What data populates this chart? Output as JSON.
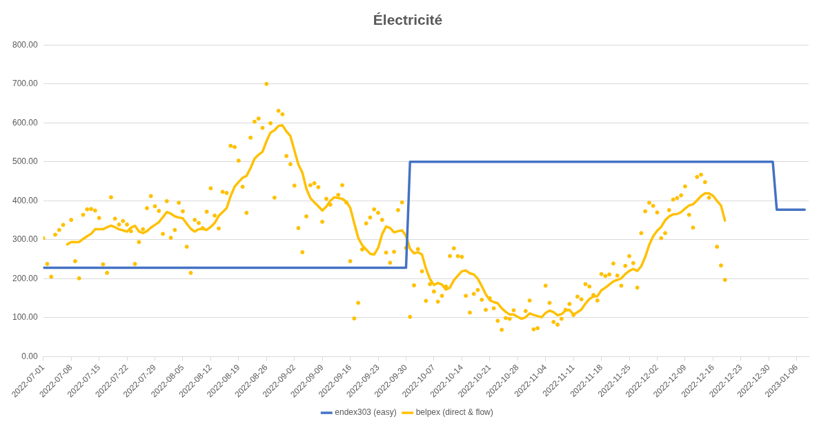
{
  "chart_data": {
    "type": "line",
    "title": "Électricité",
    "legend": "bottom",
    "grid": "y",
    "x": [
      "2022-07-01",
      "2022-07-02",
      "2022-07-03",
      "2022-07-04",
      "2022-07-05",
      "2022-07-06",
      "2022-07-07",
      "2022-07-08",
      "2022-07-09",
      "2022-07-10",
      "2022-07-11",
      "2022-07-12",
      "2022-07-13",
      "2022-07-14",
      "2022-07-15",
      "2022-07-16",
      "2022-07-17",
      "2022-07-18",
      "2022-07-19",
      "2022-07-20",
      "2022-07-21",
      "2022-07-22",
      "2022-07-23",
      "2022-07-24",
      "2022-07-25",
      "2022-07-26",
      "2022-07-27",
      "2022-07-28",
      "2022-07-29",
      "2022-07-30",
      "2022-07-31",
      "2022-08-01",
      "2022-08-02",
      "2022-08-03",
      "2022-08-04",
      "2022-08-05",
      "2022-08-06",
      "2022-08-07",
      "2022-08-08",
      "2022-08-09",
      "2022-08-10",
      "2022-08-11",
      "2022-08-12",
      "2022-08-13",
      "2022-08-14",
      "2022-08-15",
      "2022-08-16",
      "2022-08-17",
      "2022-08-18",
      "2022-08-19",
      "2022-08-20",
      "2022-08-21",
      "2022-08-22",
      "2022-08-23",
      "2022-08-24",
      "2022-08-25",
      "2022-08-26",
      "2022-08-27",
      "2022-08-28",
      "2022-08-29",
      "2022-08-30",
      "2022-08-31",
      "2022-09-01",
      "2022-09-02",
      "2022-09-03",
      "2022-09-04",
      "2022-09-05",
      "2022-09-06",
      "2022-09-07",
      "2022-09-08",
      "2022-09-09",
      "2022-09-10",
      "2022-09-11",
      "2022-09-12",
      "2022-09-13",
      "2022-09-14",
      "2022-09-15",
      "2022-09-16",
      "2022-09-17",
      "2022-09-18",
      "2022-09-19",
      "2022-09-20",
      "2022-09-21",
      "2022-09-22",
      "2022-09-23",
      "2022-09-24",
      "2022-09-25",
      "2022-09-26",
      "2022-09-27",
      "2022-09-28",
      "2022-09-29",
      "2022-09-30",
      "2022-10-01",
      "2022-10-02",
      "2022-10-03",
      "2022-10-04",
      "2022-10-05",
      "2022-10-06",
      "2022-10-07",
      "2022-10-08",
      "2022-10-09",
      "2022-10-10",
      "2022-10-11",
      "2022-10-12",
      "2022-10-13",
      "2022-10-14",
      "2022-10-15",
      "2022-10-16",
      "2022-10-17",
      "2022-10-18",
      "2022-10-19",
      "2022-10-20",
      "2022-10-21",
      "2022-10-22",
      "2022-10-23",
      "2022-10-24",
      "2022-10-25",
      "2022-10-26",
      "2022-10-27",
      "2022-10-28",
      "2022-10-29",
      "2022-10-30",
      "2022-10-31",
      "2022-11-01",
      "2022-11-02",
      "2022-11-03",
      "2022-11-04",
      "2022-11-05",
      "2022-11-06",
      "2022-11-07",
      "2022-11-08",
      "2022-11-09",
      "2022-11-10",
      "2022-11-11",
      "2022-11-12",
      "2022-11-13",
      "2022-11-14",
      "2022-11-15",
      "2022-11-16",
      "2022-11-17",
      "2022-11-18",
      "2022-11-19",
      "2022-11-20",
      "2022-11-21",
      "2022-11-22",
      "2022-11-23",
      "2022-11-24",
      "2022-11-25",
      "2022-11-26",
      "2022-11-27",
      "2022-11-28",
      "2022-11-29",
      "2022-11-30",
      "2022-12-01",
      "2022-12-02",
      "2022-12-03",
      "2022-12-04",
      "2022-12-05",
      "2022-12-06",
      "2022-12-07",
      "2022-12-08",
      "2022-12-09",
      "2022-12-10",
      "2022-12-11",
      "2022-12-12",
      "2022-12-13",
      "2022-12-14",
      "2022-12-15",
      "2022-12-16",
      "2022-12-17",
      "2022-12-18",
      "2022-12-19"
    ],
    "xlim": [
      "2022-07-01",
      "2023-01-09"
    ],
    "xticks": [
      "2022-07-01",
      "2022-07-08",
      "2022-07-15",
      "2022-07-22",
      "2022-07-29",
      "2022-08-05",
      "2022-08-12",
      "2022-08-19",
      "2022-08-26",
      "2022-09-02",
      "2022-09-09",
      "2022-09-16",
      "2022-09-23",
      "2022-09-30",
      "2022-10-07",
      "2022-10-14",
      "2022-10-21",
      "2022-10-28",
      "2022-11-04",
      "2022-11-11",
      "2022-11-18",
      "2022-11-25",
      "2022-12-02",
      "2022-12-09",
      "2022-12-16",
      "2022-12-23",
      "2022-12-30",
      "2023-01-06"
    ],
    "ylim": [
      0,
      800
    ],
    "yticks": [
      {
        "value": 0,
        "label": "0.00"
      },
      {
        "value": 100,
        "label": "100.00"
      },
      {
        "value": 200,
        "label": "200.00"
      },
      {
        "value": 300,
        "label": "300.00"
      },
      {
        "value": 400,
        "label": "400.00"
      },
      {
        "value": 500,
        "label": "500.00"
      },
      {
        "value": 600,
        "label": "600.00"
      },
      {
        "value": 700,
        "label": "700.00"
      },
      {
        "value": 800,
        "label": "800.00"
      }
    ],
    "series": [
      {
        "type": "scatter",
        "marker": "circle",
        "color": "#ffc000",
        "values": [
          304,
          238,
          205,
          313,
          325,
          338,
          null,
          351,
          245,
          201,
          364,
          378,
          379,
          375,
          356,
          237,
          215,
          409,
          354,
          339,
          348,
          339,
          322,
          238,
          294,
          327,
          381,
          412,
          386,
          374,
          315,
          399,
          305,
          325,
          395,
          373,
          282,
          215,
          351,
          343,
          330,
          372,
          432,
          362,
          329,
          423,
          420,
          541,
          538,
          503,
          436,
          369,
          562,
          603,
          611,
          587,
          700,
          599,
          408,
          631,
          622,
          515,
          494,
          439,
          330,
          268,
          360,
          440,
          445,
          435,
          346,
          405,
          390,
          null,
          415,
          440,
          396,
          245,
          98,
          138,
          275,
          342,
          357,
          378,
          369,
          351,
          267,
          241,
          269,
          376,
          396,
          279,
          102,
          183,
          276,
          219,
          143,
          186,
          167,
          141,
          156,
          180,
          258,
          278,
          258,
          256,
          156,
          113,
          161,
          171,
          146,
          120,
          150,
          124,
          92,
          69,
          99,
          97,
          119,
          null,
          null,
          117,
          144,
          70,
          73,
          null,
          182,
          138,
          89,
          82,
          97,
          120,
          135,
          107,
          154,
          147,
          186,
          180,
          158,
          144,
          212,
          207,
          211,
          239,
          208,
          182,
          233,
          258,
          240,
          177,
          317,
          373,
          395,
          387,
          370,
          304,
          317,
          376,
          403,
          407,
          414,
          437,
          364,
          331,
          461,
          467,
          448,
          408,
          null,
          282,
          234,
          197
        ]
      },
      {
        "name": "endex303 (easy)",
        "color": "#4472c4",
        "x": [
          "2022-07-01",
          "2022-09-30",
          "2022-10-01",
          "2022-12-31",
          "2023-01-01",
          "2023-01-08"
        ],
        "values": [
          228,
          228,
          500,
          500,
          377,
          377
        ]
      },
      {
        "name": "belpex (direct & flow)",
        "color": "#ffc000",
        "values": [
          null,
          null,
          null,
          null,
          null,
          null,
          288,
          294,
          294,
          294,
          302,
          309,
          315,
          327,
          327,
          327,
          332,
          336,
          332,
          327,
          324,
          321,
          331,
          336,
          321,
          317,
          322,
          331,
          338,
          345,
          358,
          371,
          367,
          360,
          357,
          355,
          341,
          328,
          321,
          327,
          328,
          325,
          333,
          343,
          361,
          371,
          381,
          412,
          436,
          448,
          459,
          464,
          484,
          508,
          518,
          526,
          553,
          575,
          581,
          592,
          594,
          578,
          566,
          529,
          493,
          472,
          431,
          407,
          396,
          386,
          375,
          385,
          400,
          409,
          407,
          405,
          398,
          382,
          343,
          305,
          286,
          275,
          264,
          262,
          279,
          314,
          334,
          330,
          319,
          322,
          324,
          310,
          277,
          265,
          268,
          262,
          226,
          199,
          184,
          189,
          185,
          172,
          177,
          196,
          208,
          219,
          221,
          214,
          211,
          200,
          181,
          160,
          145,
          140,
          137,
          124,
          115,
          108,
          108,
          102,
          97,
          101,
          111,
          107,
          104,
          101,
          112,
          118,
          114,
          106,
          109,
          118,
          120,
          108,
          114,
          121,
          136,
          148,
          154,
          155,
          170,
          177,
          185,
          193,
          197,
          201,
          212,
          220,
          225,
          220,
          232,
          256,
          287,
          309,
          323,
          333,
          350,
          360,
          365,
          366,
          371,
          380,
          388,
          391,
          401,
          412,
          419,
          419,
          413,
          400,
          388,
          349
        ]
      }
    ]
  }
}
